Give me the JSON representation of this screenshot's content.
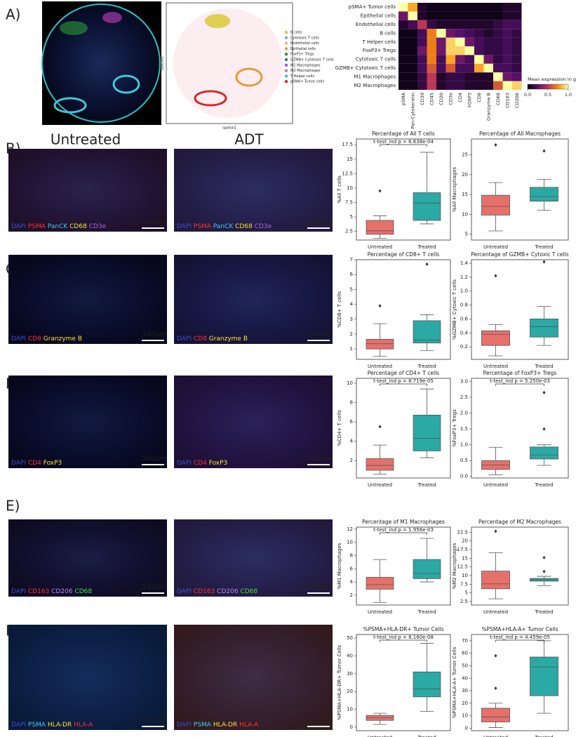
{
  "panel_labels": [
    "A)",
    "B)",
    "C)",
    "D)",
    "E)",
    "F)"
  ],
  "spatial_plot": {
    "xlabel": "spatial1",
    "ylabel": "spatial2",
    "legend": [
      {
        "name": "B cells",
        "color": "#d4c82a"
      },
      {
        "name": "Cytotoxic T cells",
        "color": "#7fa8e0"
      },
      {
        "name": "Endothelial cells",
        "color": "#e8b48a"
      },
      {
        "name": "Epithelial cells",
        "color": "#e89a3c"
      },
      {
        "name": "FoxP3+ Tregs",
        "color": "#3c8c3c"
      },
      {
        "name": "GZMB+ Cytotoxic T cells",
        "color": "#2a7a7a"
      },
      {
        "name": "M1 Macrophages",
        "color": "#9a5ab4"
      },
      {
        "name": "M2 Macrophages",
        "color": "#d070b0"
      },
      {
        "name": "T Helper cells",
        "color": "#40c0c8"
      },
      {
        "name": "pSMA+ Tumor cells",
        "color": "#d42a2a"
      }
    ]
  },
  "image_titles": [
    "Untreated",
    "ADT"
  ],
  "image_rows": [
    [
      {
        "channels": [
          {
            "text": "DAPI",
            "color": "#3b4fd4"
          },
          {
            "text": "PSMA",
            "color": "#ff3030"
          },
          {
            "text": "PanCK",
            "color": "#40c8f0"
          },
          {
            "text": "CD68",
            "color": "#ffe030"
          },
          {
            "text": "CD3e",
            "color": "#b060e0"
          }
        ],
        "scale": "100µm"
      },
      {
        "channels": [
          {
            "text": "DAPI",
            "color": "#3b4fd4"
          },
          {
            "text": "PSMA",
            "color": "#ff3030"
          },
          {
            "text": "PanCK",
            "color": "#40c8f0"
          },
          {
            "text": "CD68",
            "color": "#ffe030"
          },
          {
            "text": "CD3e",
            "color": "#b060e0"
          }
        ],
        "scale": "150µm"
      }
    ],
    [
      {
        "channels": [
          {
            "text": "DAPI",
            "color": "#3b4fd4"
          },
          {
            "text": "CD8",
            "color": "#ff3030"
          },
          {
            "text": "Granzyme B",
            "color": "#ffe030"
          }
        ],
        "scale": "100µm"
      },
      {
        "channels": [
          {
            "text": "DAPI",
            "color": "#3b4fd4"
          },
          {
            "text": "CD8",
            "color": "#ff3030"
          },
          {
            "text": "Granzyme B",
            "color": "#ffe030"
          }
        ],
        "scale": "100µm"
      }
    ],
    [
      {
        "channels": [
          {
            "text": "DAPI",
            "color": "#3b4fd4"
          },
          {
            "text": "CD4",
            "color": "#ff3030"
          },
          {
            "text": "FoxP3",
            "color": "#ffe030"
          }
        ],
        "scale": "100µm"
      },
      {
        "channels": [
          {
            "text": "DAPI",
            "color": "#3b4fd4"
          },
          {
            "text": "CD4",
            "color": "#ff3030"
          },
          {
            "text": "FoxP3",
            "color": "#ffe030"
          }
        ],
        "scale": "100µm"
      }
    ],
    [
      {
        "channels": [
          {
            "text": "DAPI",
            "color": "#3b4fd4"
          },
          {
            "text": "CD163",
            "color": "#ff3030"
          },
          {
            "text": "CD206",
            "color": "#c080f0"
          },
          {
            "text": "CD68",
            "color": "#40e040"
          }
        ],
        "scale": "100µm"
      },
      {
        "channels": [
          {
            "text": "DAPI",
            "color": "#3b4fd4"
          },
          {
            "text": "CD163",
            "color": "#ff3030"
          },
          {
            "text": "CD206",
            "color": "#c080f0"
          },
          {
            "text": "CD68",
            "color": "#40e040"
          }
        ],
        "scale": "100µm"
      }
    ],
    [
      {
        "channels": [
          {
            "text": "DAPI",
            "color": "#3b4fd4"
          },
          {
            "text": "PSMA",
            "color": "#40c8f0"
          },
          {
            "text": "HLA-DR",
            "color": "#ffe030"
          },
          {
            "text": "HLA-A",
            "color": "#ff3030"
          }
        ],
        "scale": "100µm"
      },
      {
        "channels": [
          {
            "text": "DAPI",
            "color": "#3b4fd4"
          },
          {
            "text": "PSMA",
            "color": "#40c8f0"
          },
          {
            "text": "HLA-DR",
            "color": "#ffe030"
          },
          {
            "text": "HLA-A",
            "color": "#ff3030"
          }
        ],
        "scale": "100µm"
      }
    ]
  ],
  "chart_data": [
    {
      "type": "heatmap",
      "rows": [
        "pSMA+ Tumor cells",
        "Epithelial cells",
        "Endothelial cells",
        "B cells",
        "T Helper cells",
        "FoxP3+ Tregs",
        "Cytotoxic T cells",
        "GZMB+ Cytotoxic T cells",
        "M1 Macrophages",
        "M2 Macrophages"
      ],
      "columns": [
        "pSMA",
        "Pan-Cytokeratin",
        "CD39",
        "CD45",
        "CD20",
        "CD3e",
        "CD4",
        "FOXP3",
        "CD8",
        "Granzyme B",
        "CD68",
        "CD163",
        "CD206"
      ],
      "values": [
        [
          1.0,
          0.8,
          0.1,
          0.05,
          0.05,
          0.05,
          0.05,
          0.05,
          0.05,
          0.05,
          0.05,
          0.1,
          0.1
        ],
        [
          0.3,
          1.0,
          0.1,
          0.05,
          0.05,
          0.05,
          0.05,
          0.05,
          0.05,
          0.05,
          0.05,
          0.1,
          0.1
        ],
        [
          0.1,
          0.2,
          0.5,
          0.15,
          0.1,
          0.1,
          0.1,
          0.1,
          0.1,
          0.1,
          0.15,
          0.2,
          0.2
        ],
        [
          0.05,
          0.05,
          0.2,
          0.7,
          1.0,
          0.3,
          0.25,
          0.2,
          0.15,
          0.1,
          0.15,
          0.2,
          0.15
        ],
        [
          0.05,
          0.05,
          0.2,
          0.7,
          0.3,
          0.9,
          1.0,
          0.3,
          0.2,
          0.15,
          0.15,
          0.2,
          0.15
        ],
        [
          0.05,
          0.05,
          0.3,
          0.7,
          0.3,
          0.9,
          0.9,
          1.0,
          0.2,
          0.15,
          0.15,
          0.2,
          0.15
        ],
        [
          0.05,
          0.05,
          0.2,
          0.7,
          0.2,
          0.8,
          0.3,
          0.2,
          1.0,
          0.3,
          0.15,
          0.2,
          0.15
        ],
        [
          0.05,
          0.05,
          0.2,
          0.6,
          0.2,
          0.6,
          0.2,
          0.2,
          0.8,
          1.0,
          0.2,
          0.2,
          0.15
        ],
        [
          0.05,
          0.05,
          0.15,
          0.5,
          0.1,
          0.15,
          0.15,
          0.1,
          0.1,
          0.1,
          1.0,
          0.3,
          0.25
        ],
        [
          0.05,
          0.05,
          0.15,
          0.5,
          0.1,
          0.15,
          0.15,
          0.1,
          0.1,
          0.1,
          0.6,
          1.0,
          0.9
        ]
      ],
      "colorbar_title": "Mean expression in group",
      "colorbar_lim": [
        0,
        1
      ],
      "colorbar_ticks": [
        {
          "value": 0,
          "label": "0.0"
        },
        {
          "value": 0.5,
          "label": "0.5"
        },
        {
          "value": 1,
          "label": "1.0"
        }
      ]
    },
    {
      "type": "box",
      "title": "Percentage of All T cells",
      "ylabel": "%All T cells",
      "annotation": "t-test_ind p = 6.638e-04",
      "categories": [
        "Untreated",
        "Treated"
      ],
      "ylim": [
        1,
        18.5
      ],
      "yticks": [
        2.5,
        5.0,
        7.5,
        10.0,
        12.5,
        15.0,
        17.5
      ],
      "boxes": [
        {
          "color": "#e6716b",
          "whisker_low": 1.3,
          "q1": 2.0,
          "median": 2.6,
          "q3": 4.4,
          "whisker_high": 5.2,
          "outliers": [
            9.5
          ]
        },
        {
          "color": "#2aa9a5",
          "whisker_low": 3.8,
          "q1": 4.4,
          "median": 7.4,
          "q3": 9.2,
          "whisker_high": 16.2,
          "outliers": []
        }
      ]
    },
    {
      "type": "box",
      "title": "Percentage of All Macrophages",
      "ylabel": "%All Macrophages",
      "categories": [
        "Untreated",
        "Treated"
      ],
      "ylim": [
        3.5,
        29
      ],
      "yticks": [
        5,
        10,
        15,
        20,
        25
      ],
      "boxes": [
        {
          "color": "#e6716b",
          "whisker_low": 5.8,
          "q1": 9.8,
          "median": 12,
          "q3": 14.8,
          "whisker_high": 18,
          "outliers": [
            27.5
          ]
        },
        {
          "color": "#2aa9a5",
          "whisker_low": 11,
          "q1": 13.3,
          "median": 14.5,
          "q3": 16.8,
          "whisker_high": 18.8,
          "outliers": [
            26
          ]
        }
      ]
    },
    {
      "type": "box",
      "title": "Percentage of CD8+ T cells",
      "ylabel": "%CD8+ T cells",
      "categories": [
        "Untreated",
        "Treated"
      ],
      "ylim": [
        0.3,
        7
      ],
      "yticks": [
        1,
        2,
        3,
        4,
        5,
        6,
        7
      ],
      "boxes": [
        {
          "color": "#e6716b",
          "whisker_low": 0.5,
          "q1": 1.0,
          "median": 1.35,
          "q3": 1.65,
          "whisker_high": 2.7,
          "outliers": [
            3.9
          ]
        },
        {
          "color": "#2aa9a5",
          "whisker_low": 0.9,
          "q1": 1.4,
          "median": 1.6,
          "q3": 2.9,
          "whisker_high": 3.3,
          "outliers": [
            6.7
          ]
        }
      ]
    },
    {
      "type": "box",
      "title": "Percentage of GZMB+ Cytoxic T cells",
      "ylabel": "%GZMB+ Cytoxic T cells",
      "categories": [
        "Untreated",
        "Treated"
      ],
      "ylim": [
        0.02,
        1.45
      ],
      "yticks": [
        0.2,
        0.4,
        0.6,
        0.8,
        {
          "value": 1,
          "label": "1.0"
        },
        1.2,
        1.4
      ],
      "boxes": [
        {
          "color": "#e6716b",
          "whisker_low": 0.07,
          "q1": 0.22,
          "median": 0.38,
          "q3": 0.43,
          "whisker_high": 0.52,
          "outliers": [
            1.22
          ]
        },
        {
          "color": "#2aa9a5",
          "whisker_low": 0.22,
          "q1": 0.34,
          "median": 0.49,
          "q3": 0.6,
          "whisker_high": 0.78,
          "outliers": [
            1.42
          ]
        }
      ]
    },
    {
      "type": "box",
      "title": "Percentage of CD4+ T cells",
      "ylabel": "%CD4+ T cells",
      "annotation": "t-test_ind p = 8.719e-05",
      "categories": [
        "Untreated",
        "Treated"
      ],
      "ylim": [
        0.2,
        10.5
      ],
      "yticks": [
        2,
        4,
        6,
        8,
        10
      ],
      "boxes": [
        {
          "color": "#e6716b",
          "whisker_low": 0.6,
          "q1": 1.0,
          "median": 1.5,
          "q3": 2.2,
          "whisker_high": 3.6,
          "outliers": [
            5.5
          ]
        },
        {
          "color": "#2aa9a5",
          "whisker_low": 2.3,
          "q1": 3.0,
          "median": 4.3,
          "q3": 6.7,
          "whisker_high": 9.4,
          "outliers": []
        }
      ]
    },
    {
      "type": "box",
      "title": "Percentage of FoxP3+ Tregs",
      "ylabel": "%FoxP3+ Tregs",
      "annotation": "t-test_ind p = 5.250e-03",
      "categories": [
        "Untreated",
        "Treated"
      ],
      "ylim": [
        -0.05,
        3.1
      ],
      "yticks": [
        {
          "value": 0,
          "label": "0.0"
        },
        0.5,
        {
          "value": 1,
          "label": "1.0"
        },
        1.5,
        {
          "value": 2,
          "label": "2.0"
        },
        2.5,
        {
          "value": 3,
          "label": "3.0"
        }
      ],
      "boxes": [
        {
          "color": "#e6716b",
          "whisker_low": 0.05,
          "q1": 0.22,
          "median": 0.36,
          "q3": 0.5,
          "whisker_high": 0.92,
          "outliers": []
        },
        {
          "color": "#2aa9a5",
          "whisker_low": 0.35,
          "q1": 0.55,
          "median": 0.68,
          "q3": 0.93,
          "whisker_high": 1.0,
          "outliers": [
            1.5,
            2.65
          ]
        }
      ]
    },
    {
      "type": "box",
      "title": "Percentage of M1 Macrophages",
      "ylabel": "%M1 Macrophages",
      "annotation": "t-test_ind p = 1.956e-03",
      "categories": [
        "Untreated",
        "Treated"
      ],
      "ylim": [
        0.5,
        12.3
      ],
      "yticks": [
        2,
        4,
        6,
        8,
        10,
        12
      ],
      "boxes": [
        {
          "color": "#e6716b",
          "whisker_low": 0.9,
          "q1": 2.9,
          "median": 3.6,
          "q3": 4.7,
          "whisker_high": 7.4,
          "outliers": []
        },
        {
          "color": "#2aa9a5",
          "whisker_low": 4.0,
          "q1": 4.5,
          "median": 5.3,
          "q3": 7.4,
          "whisker_high": 10.6,
          "outliers": []
        }
      ]
    },
    {
      "type": "box",
      "title": "Percentage of M2 Macrophages",
      "ylabel": "%M2 Macrophages",
      "categories": [
        "Untreated",
        "Treated"
      ],
      "ylim": [
        1.5,
        24
      ],
      "yticks": [
        2.5,
        5.0,
        7.5,
        10.0,
        12.5,
        15.0,
        17.5,
        20.0,
        22.5
      ],
      "boxes": [
        {
          "color": "#e6716b",
          "whisker_low": 3.3,
          "q1": 6.2,
          "median": 7.6,
          "q3": 11.3,
          "whisker_high": 16.6,
          "outliers": [
            22.8
          ]
        },
        {
          "color": "#2aa9a5",
          "whisker_low": 7.1,
          "q1": 8.4,
          "median": 8.8,
          "q3": 9.2,
          "whisker_high": 9.8,
          "outliers": [
            11.2,
            15.2
          ]
        }
      ]
    },
    {
      "type": "box",
      "title": "%PSMA+HLA-DR+ Tumor Cells",
      "ylabel": "%PSMA+HLA-DR+ Tumor Cells",
      "annotation": "t-test_ind p = 8.160e-08",
      "categories": [
        "Untreated",
        "Treated"
      ],
      "ylim": [
        -2,
        52
      ],
      "yticks": [
        0,
        10,
        20,
        30,
        40,
        50
      ],
      "boxes": [
        {
          "color": "#e6716b",
          "whisker_low": 1.5,
          "q1": 3.8,
          "median": 5.2,
          "q3": 6.6,
          "whisker_high": 7.8,
          "outliers": []
        },
        {
          "color": "#2aa9a5",
          "whisker_low": 8.8,
          "q1": 17,
          "median": 21.5,
          "q3": 31,
          "whisker_high": 47,
          "outliers": []
        }
      ]
    },
    {
      "type": "box",
      "title": "%PSMA+HLA-A+ Tumor Cells",
      "ylabel": "%PSMA+HLA-A+ Tumor Cells",
      "annotation": "t-test_ind p = 4.459e-05",
      "categories": [
        "Untreated",
        "Treated"
      ],
      "ylim": [
        -2,
        75
      ],
      "yticks": [
        0,
        10,
        20,
        30,
        40,
        50,
        60,
        70
      ],
      "boxes": [
        {
          "color": "#e6716b",
          "whisker_low": 0.5,
          "q1": 5,
          "median": 9,
          "q3": 16,
          "whisker_high": 20,
          "outliers": [
            32,
            58
          ]
        },
        {
          "color": "#2aa9a5",
          "whisker_low": 12,
          "q1": 26,
          "median": 49,
          "q3": 57,
          "whisker_high": 70,
          "outliers": []
        }
      ]
    }
  ]
}
